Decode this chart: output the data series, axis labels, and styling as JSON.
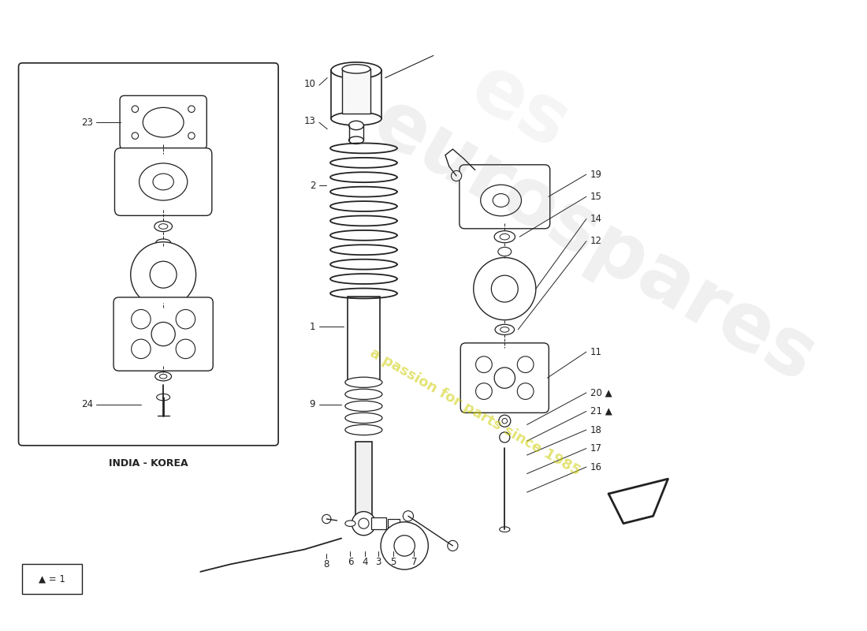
{
  "bg_color": "#ffffff",
  "line_color": "#222222",
  "india_korea_label": "INDIA - KOREA",
  "legend_label": "▲ = 1",
  "watermark_gray": "#aaaaaa",
  "watermark_yellow": "#cccc44"
}
